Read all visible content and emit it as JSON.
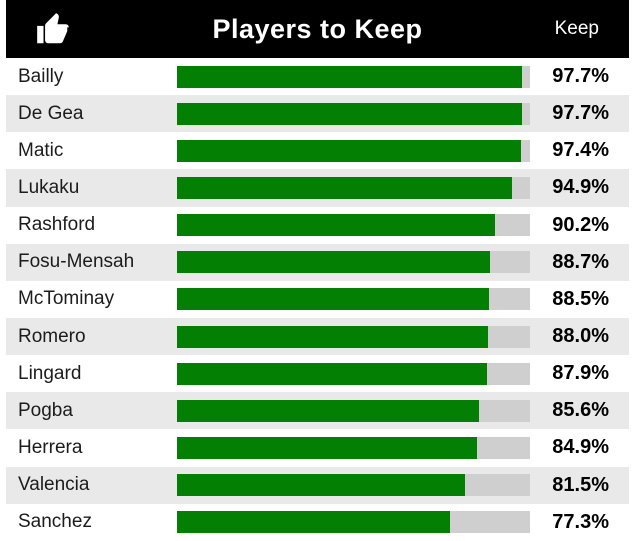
{
  "header": {
    "icon": "thumbs-up",
    "title": "Players to Keep",
    "column_label": "Keep"
  },
  "colors": {
    "header_bg": "#000000",
    "header_text": "#ffffff",
    "row_alt_bg": "#e9e9e9",
    "bar_fill": "#038003",
    "bar_track": "#cfcfcf",
    "name_text": "#1c1c1c",
    "value_text": "#000000"
  },
  "chart_data": {
    "type": "bar",
    "orientation": "horizontal",
    "title": "Players to Keep",
    "value_column_label": "Keep",
    "categories": [
      "Bailly",
      "De Gea",
      "Matic",
      "Lukaku",
      "Rashford",
      "Fosu-Mensah",
      "McTominay",
      "Romero",
      "Lingard",
      "Pogba",
      "Herrera",
      "Valencia",
      "Sanchez"
    ],
    "values": [
      97.7,
      97.7,
      97.4,
      94.9,
      90.2,
      88.7,
      88.5,
      88.0,
      87.9,
      85.6,
      84.9,
      81.5,
      77.3
    ],
    "value_labels": [
      "97.7%",
      "97.7%",
      "97.4%",
      "94.9%",
      "90.2%",
      "88.7%",
      "88.5%",
      "88.0%",
      "87.9%",
      "85.6%",
      "84.9%",
      "81.5%",
      "77.3%"
    ],
    "xlim": [
      0,
      100
    ],
    "grid": false,
    "legend_position": "none",
    "sort_order": "descending"
  }
}
